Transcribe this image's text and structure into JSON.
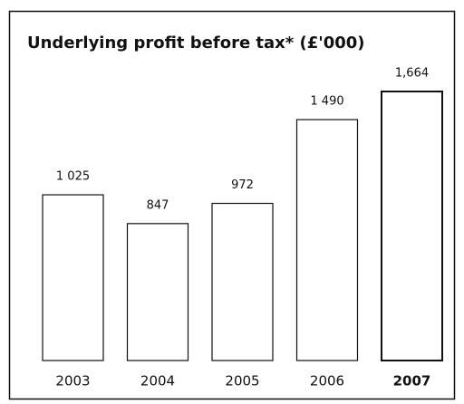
{
  "chart_data": {
    "type": "bar",
    "title": "Underlying profit before tax* (£'000)",
    "categories": [
      "2003",
      "2004",
      "2005",
      "2006",
      "2007"
    ],
    "values": [
      1025,
      847,
      972,
      1490,
      1664
    ],
    "value_labels": [
      "1 025",
      "847",
      "972",
      "1 490",
      "1,664"
    ],
    "color": "#ffffff"
  }
}
